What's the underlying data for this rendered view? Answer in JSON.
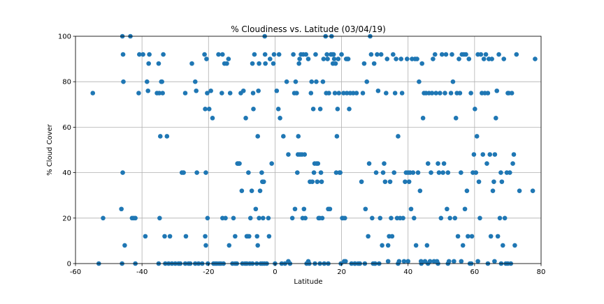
{
  "chart_data": {
    "type": "scatter",
    "title": "% Cloudiness vs. Latitude (03/04/19)",
    "xlabel": "Latitude",
    "ylabel": "% Cloud Cover",
    "xlim": [
      -60,
      80
    ],
    "ylim": [
      0,
      100
    ],
    "xticks": [
      -60,
      -40,
      -20,
      0,
      20,
      40,
      60,
      80
    ],
    "yticks": [
      0,
      20,
      40,
      60,
      80,
      100
    ],
    "grid": true,
    "marker_color": "#1f77b4",
    "points": [
      [
        -54.8,
        75
      ],
      [
        -53,
        0
      ],
      [
        -51.7,
        20
      ],
      [
        -46.2,
        24
      ],
      [
        -45.9,
        100
      ],
      [
        -45.7,
        92
      ],
      [
        -45.6,
        80
      ],
      [
        -45.8,
        40
      ],
      [
        -45.2,
        8
      ],
      [
        -46,
        0
      ],
      [
        -43.5,
        100
      ],
      [
        -43,
        20
      ],
      [
        -42.5,
        20
      ],
      [
        -42,
        20
      ],
      [
        -42,
        0
      ],
      [
        -41,
        75
      ],
      [
        -40.8,
        92
      ],
      [
        -39.7,
        92
      ],
      [
        -39,
        12
      ],
      [
        -38.5,
        80
      ],
      [
        -38.2,
        76
      ],
      [
        -38,
        88
      ],
      [
        -37.8,
        92
      ],
      [
        -35.5,
        75
      ],
      [
        -35,
        88
      ],
      [
        -34.8,
        75
      ],
      [
        -34.5,
        56
      ],
      [
        -34.7,
        20
      ],
      [
        -34.2,
        80
      ],
      [
        -34,
        80
      ],
      [
        -33.6,
        92
      ],
      [
        -33.8,
        75
      ],
      [
        -33.2,
        12
      ],
      [
        -32.5,
        56
      ],
      [
        -32,
        0
      ],
      [
        -31.6,
        12
      ],
      [
        -31,
        0
      ],
      [
        -30,
        0
      ],
      [
        -29,
        0
      ],
      [
        -28.5,
        0
      ],
      [
        -28,
        40
      ],
      [
        -27.5,
        40
      ],
      [
        -27,
        75
      ],
      [
        -26.8,
        12
      ],
      [
        -26,
        0
      ],
      [
        -25.5,
        0
      ],
      [
        -25,
        88
      ],
      [
        -24,
        80
      ],
      [
        -23.7,
        76
      ],
      [
        -23.5,
        40
      ],
      [
        -23,
        0
      ],
      [
        -21.9,
        0
      ],
      [
        -21.2,
        92
      ],
      [
        -21,
        68
      ],
      [
        -20.8,
        40
      ],
      [
        -21,
        12
      ],
      [
        -20.8,
        8
      ],
      [
        -20.6,
        90
      ],
      [
        -20.4,
        75
      ],
      [
        -20.3,
        20
      ],
      [
        -20.2,
        0
      ],
      [
        -19.8,
        68
      ],
      [
        -19.3,
        76
      ],
      [
        -18.8,
        64
      ],
      [
        -18.5,
        0
      ],
      [
        -18,
        0
      ],
      [
        -17.5,
        0
      ],
      [
        -17,
        92
      ],
      [
        -16.8,
        0
      ],
      [
        -16.3,
        0
      ],
      [
        -16,
        75
      ],
      [
        -15.8,
        92
      ],
      [
        -15.8,
        20
      ],
      [
        -15.5,
        0
      ],
      [
        -15.2,
        88
      ],
      [
        -14.9,
        20
      ],
      [
        -14.5,
        88
      ],
      [
        -14,
        90
      ],
      [
        -13.8,
        8
      ],
      [
        -13.5,
        75
      ],
      [
        -12.8,
        0
      ],
      [
        -12.5,
        20
      ],
      [
        -12,
        12
      ],
      [
        -11.5,
        0
      ],
      [
        -11.3,
        44
      ],
      [
        -11,
        44
      ],
      [
        -10.7,
        44
      ],
      [
        -10.3,
        75
      ],
      [
        -10,
        32
      ],
      [
        -9.8,
        0
      ],
      [
        -9.5,
        76
      ],
      [
        -9,
        0
      ],
      [
        -8.8,
        64
      ],
      [
        -8.5,
        12
      ],
      [
        -8.2,
        12
      ],
      [
        -8,
        40
      ],
      [
        -7.8,
        12
      ],
      [
        -7.6,
        0
      ],
      [
        -7.4,
        20
      ],
      [
        -7,
        32
      ],
      [
        -6.8,
        88
      ],
      [
        -6.6,
        75
      ],
      [
        -6.5,
        68
      ],
      [
        -6.2,
        92
      ],
      [
        -5.8,
        24
      ],
      [
        -5.5,
        0
      ],
      [
        -5.4,
        12
      ],
      [
        -5.2,
        8
      ],
      [
        -5,
        76
      ],
      [
        -5.2,
        56
      ],
      [
        -4.8,
        88
      ],
      [
        -4.8,
        20
      ],
      [
        -4.5,
        32
      ],
      [
        -4.3,
        0
      ],
      [
        -4,
        40
      ],
      [
        -3.8,
        36
      ],
      [
        -3.6,
        20
      ],
      [
        -3.4,
        36
      ],
      [
        -3.2,
        0
      ],
      [
        -3.1,
        100
      ],
      [
        -3,
        92
      ],
      [
        -2.9,
        88
      ],
      [
        -2.5,
        0
      ],
      [
        -2,
        20
      ],
      [
        -1.8,
        12
      ],
      [
        -1.5,
        90
      ],
      [
        -1,
        44
      ],
      [
        -0.5,
        88
      ],
      [
        -0.3,
        92
      ],
      [
        0.5,
        76
      ],
      [
        1,
        68
      ],
      [
        1.2,
        92
      ],
      [
        1.5,
        64
      ],
      [
        2,
        0
      ],
      [
        2.5,
        56
      ],
      [
        3,
        0
      ],
      [
        3.5,
        80
      ],
      [
        4,
        48
      ],
      [
        4.5,
        0
      ],
      [
        5.2,
        20
      ],
      [
        5.5,
        92
      ],
      [
        5.8,
        75
      ],
      [
        6,
        24
      ],
      [
        6.2,
        80
      ],
      [
        6.5,
        75
      ],
      [
        6.7,
        40
      ],
      [
        6.9,
        48
      ],
      [
        7,
        56
      ],
      [
        7.2,
        88
      ],
      [
        7.4,
        90
      ],
      [
        7.5,
        48
      ],
      [
        7.8,
        92
      ],
      [
        8.1,
        48
      ],
      [
        8.3,
        20
      ],
      [
        8.5,
        92
      ],
      [
        8.7,
        24
      ],
      [
        8.9,
        48
      ],
      [
        9.1,
        20
      ],
      [
        9.3,
        92
      ],
      [
        9.5,
        0
      ],
      [
        10,
        90
      ],
      [
        10.3,
        0
      ],
      [
        10.5,
        36
      ],
      [
        10.8,
        75
      ],
      [
        11,
        80
      ],
      [
        11.2,
        36
      ],
      [
        11.5,
        68
      ],
      [
        11.7,
        40
      ],
      [
        11.9,
        44
      ],
      [
        12,
        0
      ],
      [
        12.2,
        92
      ],
      [
        12.4,
        80
      ],
      [
        12.5,
        44
      ],
      [
        12.7,
        36
      ],
      [
        12.9,
        44
      ],
      [
        13.1,
        20
      ],
      [
        13.4,
        20
      ],
      [
        13.6,
        68
      ],
      [
        13.8,
        40
      ],
      [
        14,
        36
      ],
      [
        14.2,
        20
      ],
      [
        14.4,
        80
      ],
      [
        14.6,
        90
      ],
      [
        14.8,
        0
      ],
      [
        15.2,
        100
      ],
      [
        15.4,
        75
      ],
      [
        15.6,
        92
      ],
      [
        15.8,
        90
      ],
      [
        16,
        24
      ],
      [
        16.2,
        75
      ],
      [
        16.5,
        24
      ],
      [
        16.8,
        92
      ],
      [
        17,
        100
      ],
      [
        17.2,
        92
      ],
      [
        17.4,
        88
      ],
      [
        17.6,
        92
      ],
      [
        17.8,
        90
      ],
      [
        18,
        75
      ],
      [
        18.2,
        88
      ],
      [
        18.4,
        40
      ],
      [
        18.6,
        56
      ],
      [
        18.8,
        68
      ],
      [
        19,
        90
      ],
      [
        19.2,
        75
      ],
      [
        19.4,
        40
      ],
      [
        19.6,
        40
      ],
      [
        19.8,
        0
      ],
      [
        20,
        92
      ],
      [
        20.2,
        20
      ],
      [
        20.4,
        20
      ],
      [
        20.6,
        75
      ],
      [
        20.8,
        1
      ],
      [
        21,
        20
      ],
      [
        21.2,
        1
      ],
      [
        21.4,
        90
      ],
      [
        21.6,
        75
      ],
      [
        21.8,
        90
      ],
      [
        22,
        90
      ],
      [
        22.3,
        68
      ],
      [
        22.6,
        75
      ],
      [
        23,
        0
      ],
      [
        23.5,
        75
      ],
      [
        24,
        0
      ],
      [
        24.5,
        75
      ],
      [
        25,
        0
      ],
      [
        25.5,
        0
      ],
      [
        26,
        36
      ],
      [
        26.4,
        75
      ],
      [
        26.8,
        88
      ],
      [
        27.2,
        24
      ],
      [
        27.6,
        80
      ],
      [
        28,
        12
      ],
      [
        28.3,
        44
      ],
      [
        28.6,
        100
      ],
      [
        28.9,
        92
      ],
      [
        29.2,
        20
      ],
      [
        29.5,
        0
      ],
      [
        29.8,
        88
      ],
      [
        30.1,
        0
      ],
      [
        30.4,
        40
      ],
      [
        30.7,
        92
      ],
      [
        31,
        76
      ],
      [
        31.3,
        0
      ],
      [
        31.6,
        20
      ],
      [
        31.9,
        92
      ],
      [
        32.2,
        8
      ],
      [
        32.5,
        40
      ],
      [
        32.8,
        44
      ],
      [
        33.1,
        36
      ],
      [
        33.4,
        75
      ],
      [
        33.7,
        90
      ],
      [
        34,
        8
      ],
      [
        34.3,
        12
      ],
      [
        34.6,
        36
      ],
      [
        34.9,
        20
      ],
      [
        35.2,
        12
      ],
      [
        35.5,
        92
      ],
      [
        35.8,
        40
      ],
      [
        36.1,
        75
      ],
      [
        36.4,
        90
      ],
      [
        36.7,
        20
      ],
      [
        37,
        56
      ],
      [
        37.3,
        1
      ],
      [
        37.6,
        20
      ],
      [
        37.9,
        90
      ],
      [
        38.2,
        75
      ],
      [
        38.5,
        20
      ],
      [
        38.8,
        1
      ],
      [
        39.1,
        36
      ],
      [
        39.4,
        40
      ],
      [
        39.7,
        90
      ],
      [
        40,
        40
      ],
      [
        40.3,
        36
      ],
      [
        40.6,
        40
      ],
      [
        40.9,
        24
      ],
      [
        41.2,
        90
      ],
      [
        41.5,
        40
      ],
      [
        41.8,
        20
      ],
      [
        42.1,
        90
      ],
      [
        42.4,
        8
      ],
      [
        42.7,
        90
      ],
      [
        43,
        40
      ],
      [
        43.3,
        80
      ],
      [
        43.6,
        32
      ],
      [
        43.9,
        1
      ],
      [
        44.2,
        88
      ],
      [
        44.5,
        64
      ],
      [
        44.8,
        75
      ],
      [
        45.1,
        1
      ],
      [
        45.4,
        75
      ],
      [
        45.7,
        8
      ],
      [
        46,
        44
      ],
      [
        46.3,
        75
      ],
      [
        46.6,
        1
      ],
      [
        46.9,
        40
      ],
      [
        47.2,
        75
      ],
      [
        47.5,
        90
      ],
      [
        47.8,
        1
      ],
      [
        48.1,
        92
      ],
      [
        48.4,
        75
      ],
      [
        48.7,
        1
      ],
      [
        49,
        44
      ],
      [
        49.3,
        40
      ],
      [
        49.6,
        75
      ],
      [
        49.9,
        20
      ],
      [
        50.2,
        92
      ],
      [
        50.5,
        40
      ],
      [
        50.8,
        44
      ],
      [
        51.1,
        75
      ],
      [
        51.4,
        92
      ],
      [
        51.7,
        24
      ],
      [
        52,
        40
      ],
      [
        52.3,
        1
      ],
      [
        52.6,
        20
      ],
      [
        52.9,
        75
      ],
      [
        53.2,
        92
      ],
      [
        53.5,
        80
      ],
      [
        53.8,
        1
      ],
      [
        54.1,
        20
      ],
      [
        54.4,
        64
      ],
      [
        54.7,
        75
      ],
      [
        55,
        12
      ],
      [
        55.3,
        90
      ],
      [
        55.6,
        75
      ],
      [
        55.9,
        40
      ],
      [
        56.2,
        92
      ],
      [
        56.5,
        8
      ],
      [
        56.8,
        92
      ],
      [
        57.1,
        24
      ],
      [
        57.4,
        92
      ],
      [
        57.7,
        32
      ],
      [
        58,
        12
      ],
      [
        58.3,
        90
      ],
      [
        58.6,
        0
      ],
      [
        58.9,
        75
      ],
      [
        59.2,
        12
      ],
      [
        59.5,
        40
      ],
      [
        59.8,
        48
      ],
      [
        60.1,
        68
      ],
      [
        60.4,
        40
      ],
      [
        60.7,
        56
      ],
      [
        61,
        92
      ],
      [
        61.3,
        36
      ],
      [
        61.6,
        20
      ],
      [
        61.9,
        92
      ],
      [
        62.2,
        75
      ],
      [
        62.5,
        48
      ],
      [
        62.8,
        90
      ],
      [
        63.1,
        75
      ],
      [
        63.4,
        92
      ],
      [
        63.7,
        44
      ],
      [
        64,
        75
      ],
      [
        64.3,
        90
      ],
      [
        64.6,
        48
      ],
      [
        64.9,
        12
      ],
      [
        65.2,
        90
      ],
      [
        65.5,
        32
      ],
      [
        65.8,
        36
      ],
      [
        66.1,
        48
      ],
      [
        66.4,
        64
      ],
      [
        66.7,
        76
      ],
      [
        67,
        12
      ],
      [
        67.3,
        92
      ],
      [
        67.6,
        20
      ],
      [
        67.9,
        40
      ],
      [
        68.2,
        36
      ],
      [
        68.5,
        8
      ],
      [
        68.8,
        90
      ],
      [
        69.1,
        20
      ],
      [
        69.4,
        0
      ],
      [
        69.7,
        40
      ],
      [
        70,
        75
      ],
      [
        70.3,
        75
      ],
      [
        70.6,
        40
      ],
      [
        70.9,
        0
      ],
      [
        71.2,
        75
      ],
      [
        71.5,
        44
      ],
      [
        71.8,
        48
      ],
      [
        72.1,
        8
      ],
      [
        72.6,
        92
      ],
      [
        73.5,
        32
      ],
      [
        77.5,
        32
      ],
      [
        78.2,
        90
      ],
      [
        -35,
        0
      ],
      [
        -33,
        0
      ],
      [
        -27,
        0
      ],
      [
        -24,
        0
      ],
      [
        -12,
        0
      ],
      [
        -8.5,
        0
      ],
      [
        -6.8,
        0
      ],
      [
        -3.8,
        0
      ],
      [
        0,
        0
      ],
      [
        4,
        1
      ],
      [
        10,
        1
      ],
      [
        13.5,
        0
      ],
      [
        16,
        0
      ],
      [
        24,
        0
      ],
      [
        27,
        0
      ],
      [
        30,
        0
      ],
      [
        34,
        1
      ],
      [
        37,
        0
      ],
      [
        40,
        1
      ],
      [
        44,
        0
      ],
      [
        46,
        0
      ],
      [
        49,
        0
      ],
      [
        52,
        0
      ],
      [
        56,
        1
      ],
      [
        59,
        0
      ],
      [
        61,
        1
      ],
      [
        64,
        0
      ],
      [
        66,
        1
      ],
      [
        68,
        0
      ],
      [
        70,
        0
      ]
    ]
  }
}
